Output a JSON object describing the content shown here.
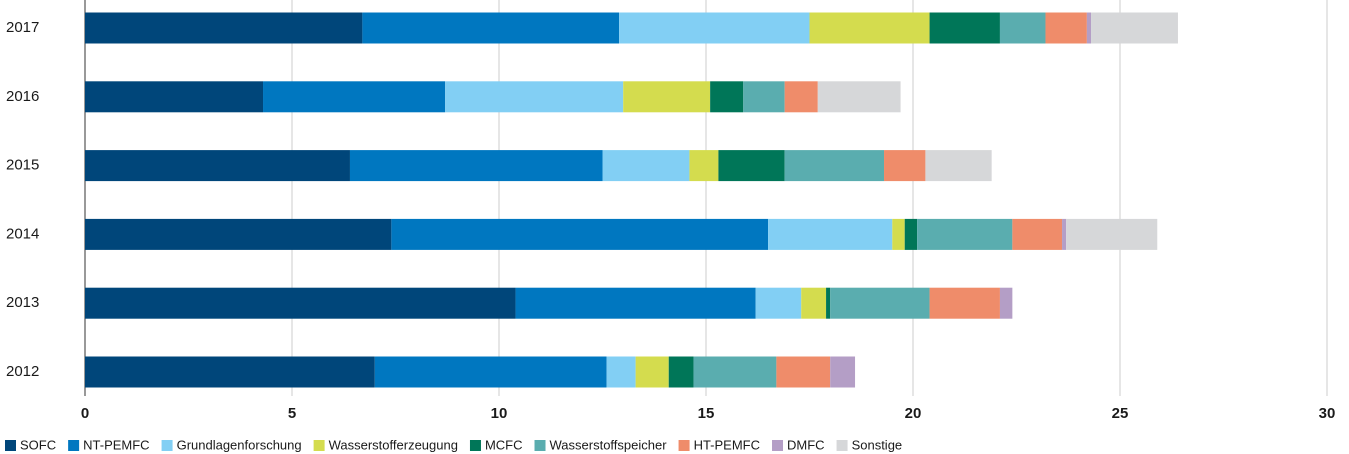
{
  "chart_data": {
    "type": "stacked-bar-horizontal",
    "categories": [
      "2017",
      "2016",
      "2015",
      "2014",
      "2013",
      "2012"
    ],
    "series": [
      {
        "name": "SOFC",
        "color": "#00467a",
        "values": [
          6.7,
          4.3,
          6.4,
          7.4,
          10.4,
          7.0
        ]
      },
      {
        "name": "NT-PEMFC",
        "color": "#0077c0",
        "values": [
          6.2,
          4.4,
          6.1,
          9.1,
          5.8,
          5.6
        ]
      },
      {
        "name": "Grundlagenforschung",
        "color": "#82cff4",
        "values": [
          4.6,
          4.3,
          2.1,
          3.0,
          1.1,
          0.7
        ]
      },
      {
        "name": "Wasserstofferzeugung",
        "color": "#d4dc4e",
        "values": [
          2.9,
          2.1,
          0.7,
          0.3,
          0.6,
          0.8
        ]
      },
      {
        "name": "MCFC",
        "color": "#007658",
        "values": [
          1.7,
          0.8,
          1.6,
          0.3,
          0.1,
          0.6
        ]
      },
      {
        "name": "Wasserstoffspeicher",
        "color": "#5aadaf",
        "values": [
          1.1,
          1.0,
          2.4,
          2.3,
          2.4,
          2.0
        ]
      },
      {
        "name": "HT-PEMFC",
        "color": "#ef8c6a",
        "values": [
          1.0,
          0.8,
          1.0,
          1.2,
          1.7,
          1.3
        ]
      },
      {
        "name": "DMFC",
        "color": "#b49ec6",
        "values": [
          0.1,
          0,
          0,
          0.1,
          0.3,
          0.6
        ]
      },
      {
        "name": "Sonstige",
        "color": "#d6d7d9",
        "values": [
          2.1,
          2.0,
          1.6,
          2.2,
          0,
          0
        ]
      }
    ],
    "xlim": [
      0,
      30
    ],
    "xticks": [
      0,
      5,
      10,
      15,
      20,
      25,
      30
    ],
    "grid": true,
    "legend": "bottom"
  }
}
